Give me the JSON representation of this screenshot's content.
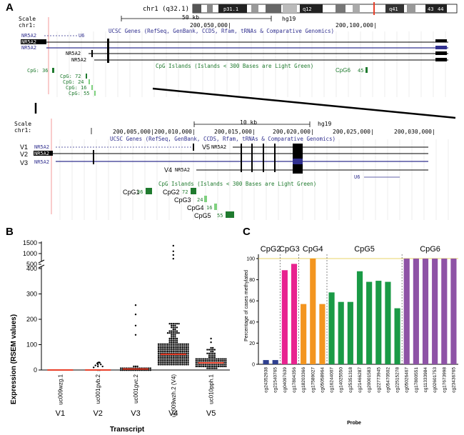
{
  "panel_labels": {
    "a": "A",
    "b": "B",
    "c": "C"
  },
  "panel_a": {
    "ideogram": {
      "chrom": "chr1 (q32.1)",
      "bands": [
        "p31.1",
        "q12",
        "q41",
        "43",
        "44"
      ]
    },
    "top": {
      "scale_label": "Scale",
      "chr_label": "chr1:",
      "scale_text": "50 kb",
      "assembly": "hg19",
      "ticks": [
        "200,050,000|",
        "200,100,000|"
      ],
      "track_title": "UCSC Genes (RefSeq, GenBank, CCDS, Rfam, tRNAs & Comparative Genomics)",
      "genes": [
        "NR5A2",
        "NR5A2",
        "NR5A2",
        "NR5A2",
        "NR5A2"
      ],
      "u6": "U6",
      "cpg_title": "CpG Islands (Islands < 300 Bases are Light Green)",
      "cpg": [
        "CpG: 36",
        "CpG: 72",
        "CpG: 24",
        "CpG: 16",
        "CpG: 55"
      ],
      "cpg6": "CpG6",
      "cpg6_count": "45"
    },
    "bottom": {
      "scale_label": "Scale",
      "chr_label": "chr1:",
      "scale_text": "10 kb",
      "assembly": "hg19",
      "ticks": [
        "200,005,000|",
        "200,010,000|",
        "200,015,000|",
        "200,020,000|",
        "200,025,000|",
        "200,030,000|"
      ],
      "track_title": "UCSC Genes (RefSeq, GenBank, CCDS, Rfam, tRNAs & Comparative Genomics)",
      "v_labels": [
        "V1",
        "V2",
        "V3",
        "V5",
        "V4"
      ],
      "genes": [
        "NR5A2",
        "NR5A2",
        "NR5A2",
        "NR5A2",
        "NR5A2"
      ],
      "u6": "U6",
      "cpg_title": "CpG Islands (Islands < 300 Bases are Light Green)",
      "cpg_names": [
        "CpG1",
        "CpG2",
        "CpG3",
        "CpG4",
        "CpG5"
      ],
      "cpg_counts": [
        "36",
        "72",
        "24",
        "16",
        "55"
      ]
    }
  },
  "colors": {
    "purple": "#8e53a6",
    "pink": "#e8238f",
    "orange": "#f3951f",
    "green": "#1a9a46",
    "navy": "#2e3f8f",
    "red": "#e8402a",
    "gene_blue": "#31308f",
    "cpg_green": "#1f7a2e"
  },
  "chart_data": [
    {
      "type": "scatter",
      "title": "",
      "ylabel": "Expression (RSEM values)",
      "xlabel": "Transcript",
      "categories": [
        "uc009wzg.1",
        "uc001gvb.2",
        "uc001gvc.2",
        "uc009wzh.2 (V4)",
        "uc010pph.1"
      ],
      "sublabels": [
        "V1",
        "V2",
        "V3",
        "V4",
        "V5"
      ],
      "y_ticks_lower": [
        "0",
        "100",
        "200",
        "300",
        "400"
      ],
      "y_ticks_upper": [
        "500",
        "1000",
        "1500"
      ],
      "medians": [
        0,
        0,
        4,
        62,
        28
      ],
      "max_values": [
        0,
        30,
        255,
        1350,
        125
      ]
    },
    {
      "type": "bar",
      "ylabel": "Percentage of cases methylated",
      "xlabel": "Probe",
      "ylim": [
        0,
        100
      ],
      "y_ticks": [
        "0",
        "20",
        "40",
        "60",
        "80",
        "100"
      ],
      "groups": [
        "CpG2",
        "CpG3",
        "CpG4",
        "CpG5",
        "CpG6"
      ],
      "categories": [
        "cg24352938",
        "cg21540765",
        "cg04097639",
        "cg17804356",
        "cg18203366",
        "cg17589027",
        "cg05058964",
        "cg16244007",
        "cg14025550",
        "cg25351318",
        "cg21466287",
        "cg20001583",
        "cg22773945",
        "cg05470502",
        "cg22515278",
        "cg05026467",
        "cg17800551",
        "cg11333984",
        "cg02601753",
        "cg17673998",
        "cg23436765"
      ],
      "values": [
        4,
        4,
        89,
        95,
        57,
        100,
        57,
        68,
        59,
        59,
        88,
        78,
        79,
        78,
        53,
        100,
        100,
        100,
        100,
        100,
        100
      ],
      "group_index": [
        0,
        0,
        1,
        1,
        2,
        2,
        2,
        3,
        3,
        3,
        3,
        3,
        3,
        3,
        3,
        4,
        4,
        4,
        4,
        4,
        4
      ]
    }
  ]
}
